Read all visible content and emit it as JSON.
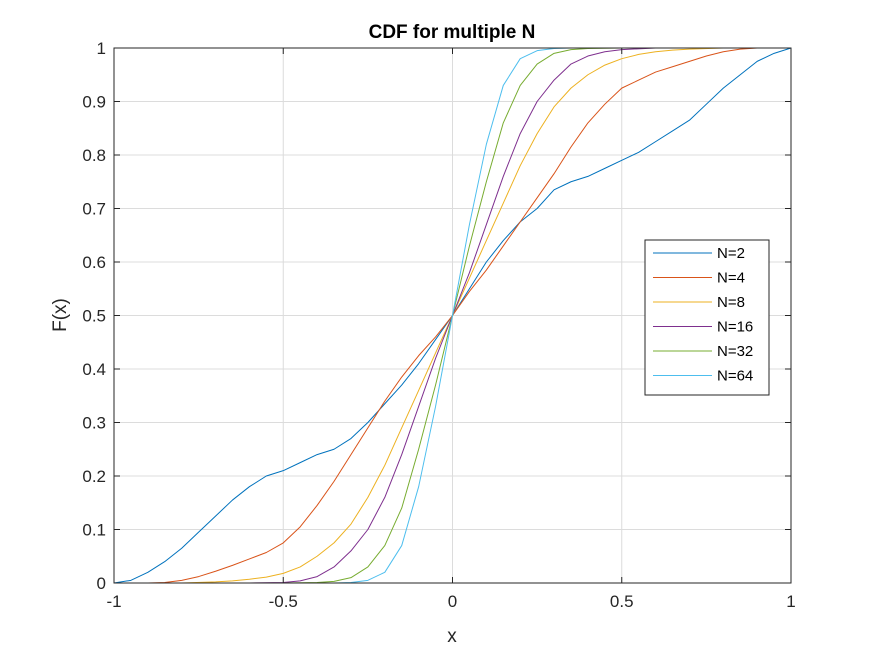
{
  "chart_data": {
    "type": "line",
    "title": "CDF for multiple N",
    "xlabel": "x",
    "ylabel": "F(x)",
    "xlim": [
      -1,
      1
    ],
    "ylim": [
      0,
      1
    ],
    "xticks": [
      -1,
      -0.5,
      0,
      0.5,
      1
    ],
    "xtick_labels": [
      "-1",
      "-0.5",
      "0",
      "0.5",
      "1"
    ],
    "yticks": [
      0,
      0.1,
      0.2,
      0.3,
      0.4,
      0.5,
      0.6,
      0.7,
      0.8,
      0.9,
      1
    ],
    "ytick_labels": [
      "0",
      "0.1",
      "0.2",
      "0.3",
      "0.4",
      "0.5",
      "0.6",
      "0.7",
      "0.8",
      "0.9",
      "1"
    ],
    "grid": true,
    "legend_position": "right",
    "series": [
      {
        "name": "N=2",
        "color": "#0072BD",
        "x": [
          -1.0,
          -0.95,
          -0.9,
          -0.85,
          -0.8,
          -0.75,
          -0.7,
          -0.65,
          -0.6,
          -0.55,
          -0.5,
          -0.45,
          -0.4,
          -0.35,
          -0.3,
          -0.25,
          -0.2,
          -0.15,
          -0.1,
          -0.05,
          0.0,
          0.05,
          0.1,
          0.15,
          0.2,
          0.25,
          0.3,
          0.35,
          0.4,
          0.45,
          0.5,
          0.55,
          0.6,
          0.65,
          0.7,
          0.75,
          0.8,
          0.85,
          0.9,
          0.95,
          1.0
        ],
        "y": [
          0.0,
          0.005,
          0.02,
          0.04,
          0.065,
          0.095,
          0.125,
          0.155,
          0.18,
          0.2,
          0.21,
          0.225,
          0.24,
          0.25,
          0.27,
          0.3,
          0.335,
          0.37,
          0.41,
          0.455,
          0.5,
          0.55,
          0.6,
          0.64,
          0.675,
          0.7,
          0.735,
          0.75,
          0.76,
          0.775,
          0.79,
          0.805,
          0.825,
          0.845,
          0.865,
          0.895,
          0.925,
          0.95,
          0.975,
          0.99,
          1.0
        ]
      },
      {
        "name": "N=4",
        "color": "#D95319",
        "x": [
          -0.9,
          -0.85,
          -0.8,
          -0.75,
          -0.7,
          -0.65,
          -0.6,
          -0.55,
          -0.5,
          -0.45,
          -0.4,
          -0.35,
          -0.3,
          -0.25,
          -0.2,
          -0.15,
          -0.1,
          -0.05,
          0.0,
          0.05,
          0.1,
          0.15,
          0.2,
          0.25,
          0.3,
          0.35,
          0.4,
          0.45,
          0.5,
          0.55,
          0.6,
          0.65,
          0.7,
          0.75,
          0.8,
          0.85,
          0.9
        ],
        "y": [
          0.0,
          0.001,
          0.005,
          0.012,
          0.022,
          0.033,
          0.045,
          0.057,
          0.075,
          0.105,
          0.145,
          0.19,
          0.24,
          0.29,
          0.34,
          0.385,
          0.425,
          0.46,
          0.5,
          0.545,
          0.585,
          0.63,
          0.675,
          0.72,
          0.765,
          0.815,
          0.86,
          0.895,
          0.925,
          0.94,
          0.955,
          0.965,
          0.975,
          0.985,
          0.993,
          0.998,
          1.0
        ]
      },
      {
        "name": "N=8",
        "color": "#EDB120",
        "x": [
          -0.8,
          -0.7,
          -0.65,
          -0.6,
          -0.55,
          -0.5,
          -0.45,
          -0.4,
          -0.35,
          -0.3,
          -0.25,
          -0.2,
          -0.15,
          -0.1,
          -0.05,
          0.0,
          0.05,
          0.1,
          0.15,
          0.2,
          0.25,
          0.3,
          0.35,
          0.4,
          0.45,
          0.5,
          0.55,
          0.6,
          0.65,
          0.7,
          0.8
        ],
        "y": [
          0.0,
          0.002,
          0.004,
          0.007,
          0.011,
          0.018,
          0.03,
          0.05,
          0.075,
          0.11,
          0.16,
          0.22,
          0.29,
          0.36,
          0.43,
          0.5,
          0.57,
          0.64,
          0.71,
          0.78,
          0.84,
          0.89,
          0.925,
          0.95,
          0.968,
          0.98,
          0.988,
          0.993,
          0.996,
          0.998,
          1.0
        ]
      },
      {
        "name": "N=16",
        "color": "#7E2F8E",
        "x": [
          -0.6,
          -0.5,
          -0.45,
          -0.4,
          -0.35,
          -0.3,
          -0.25,
          -0.2,
          -0.15,
          -0.1,
          -0.05,
          0.0,
          0.05,
          0.1,
          0.15,
          0.2,
          0.25,
          0.3,
          0.35,
          0.4,
          0.45,
          0.5,
          0.6
        ],
        "y": [
          0.0,
          0.001,
          0.004,
          0.012,
          0.03,
          0.06,
          0.1,
          0.16,
          0.24,
          0.33,
          0.42,
          0.5,
          0.58,
          0.67,
          0.76,
          0.84,
          0.9,
          0.94,
          0.97,
          0.985,
          0.993,
          0.997,
          1.0
        ]
      },
      {
        "name": "N=32",
        "color": "#77AC30",
        "x": [
          -0.5,
          -0.4,
          -0.35,
          -0.3,
          -0.25,
          -0.2,
          -0.15,
          -0.1,
          -0.05,
          0.0,
          0.05,
          0.1,
          0.15,
          0.2,
          0.25,
          0.3,
          0.35,
          0.4,
          0.5
        ],
        "y": [
          0.0,
          0.001,
          0.003,
          0.01,
          0.03,
          0.07,
          0.14,
          0.25,
          0.37,
          0.5,
          0.63,
          0.75,
          0.86,
          0.93,
          0.97,
          0.99,
          0.997,
          0.999,
          1.0
        ]
      },
      {
        "name": "N=64",
        "color": "#4DBEEE",
        "x": [
          -0.35,
          -0.3,
          -0.25,
          -0.2,
          -0.15,
          -0.1,
          -0.05,
          0.0,
          0.05,
          0.1,
          0.15,
          0.2,
          0.25,
          0.3,
          0.35
        ],
        "y": [
          0.0,
          0.001,
          0.005,
          0.02,
          0.07,
          0.18,
          0.33,
          0.5,
          0.67,
          0.82,
          0.93,
          0.98,
          0.995,
          0.999,
          1.0
        ]
      }
    ]
  }
}
